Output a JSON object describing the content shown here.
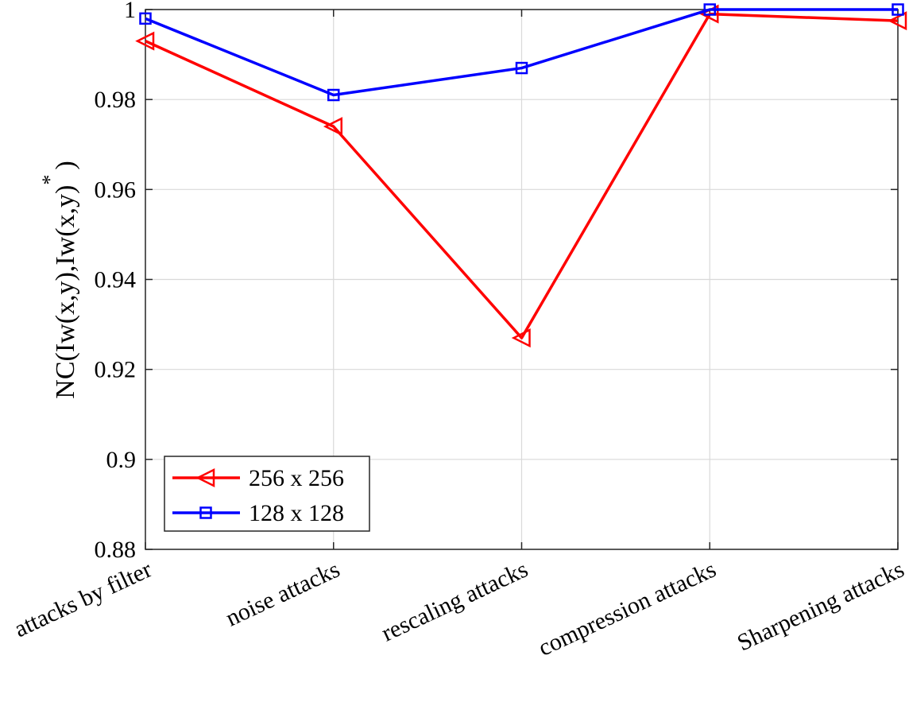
{
  "chart_data": {
    "type": "line",
    "title": "",
    "xlabel": "",
    "ylabel_main": "NC(Iw(x,y),Iw(x,y)",
    "ylabel_superscript": "*",
    "ylabel_close": ")",
    "categories": [
      "attacks by filter",
      "noise attacks",
      "rescaling attacks",
      "compression attacks",
      "Sharpening attacks"
    ],
    "ylim": [
      0.88,
      1
    ],
    "yticks": [
      0.88,
      0.9,
      0.92,
      0.94,
      0.96,
      0.98,
      1
    ],
    "ytick_labels": [
      "0.88",
      "0.9",
      "0.92",
      "0.94",
      "0.96",
      "0.98",
      "1"
    ],
    "grid": true,
    "legend_position": "bottom-left",
    "series": [
      {
        "name": "256 x 256",
        "color": "#ff0000",
        "marker": "left-triangle",
        "values": [
          0.993,
          0.974,
          0.927,
          0.999,
          0.9975
        ]
      },
      {
        "name": "128 x 128",
        "color": "#0000ff",
        "marker": "square",
        "values": [
          0.998,
          0.981,
          0.987,
          1.0,
          1.0
        ]
      }
    ]
  }
}
